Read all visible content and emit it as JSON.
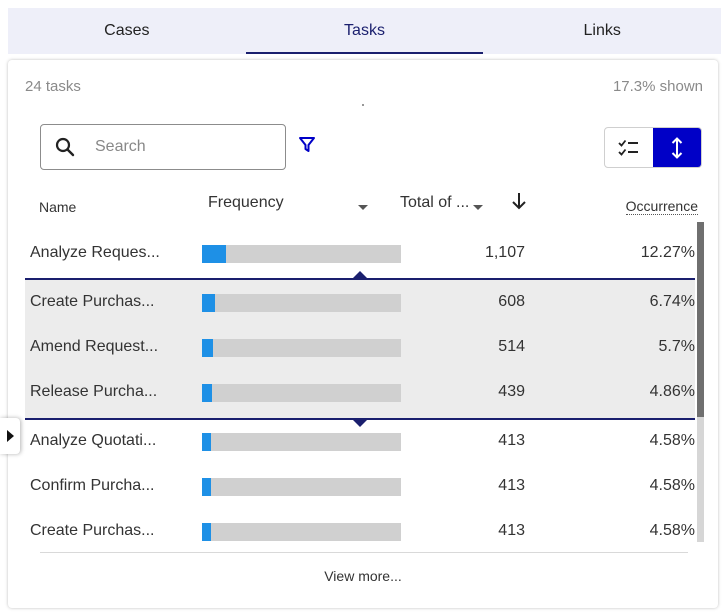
{
  "tabs": [
    {
      "label": "Cases",
      "active": false
    },
    {
      "label": "Tasks",
      "active": true
    },
    {
      "label": "Links",
      "active": false
    }
  ],
  "summary": {
    "count": "24 tasks",
    "shown": "17.3% shown"
  },
  "search": {
    "placeholder": "Search",
    "value": "",
    "icon": "search-icon"
  },
  "filter_icon": "funnel-icon",
  "view_toggle": {
    "list_icon": "checklist-icon",
    "expand_icon": "vertical-arrows-icon",
    "active": "expand"
  },
  "columns": {
    "name": "Name",
    "frequency": "Frequency",
    "total": "Total of ...",
    "occurrence": "Occurrence",
    "sort_icon": "arrow-down-icon"
  },
  "rows": [
    {
      "name": "Analyze Reques...",
      "frequency": 0.123,
      "total": "1,107",
      "occurrence": "12.27%"
    },
    {
      "name": "Create Purchas...",
      "frequency": 0.067,
      "total": "608",
      "occurrence": "6.74%"
    },
    {
      "name": "Amend Request...",
      "frequency": 0.057,
      "total": "514",
      "occurrence": "5.7%"
    },
    {
      "name": "Release Purcha...",
      "frequency": 0.049,
      "total": "439",
      "occurrence": "4.86%"
    },
    {
      "name": "Analyze Quotati...",
      "frequency": 0.046,
      "total": "413",
      "occurrence": "4.58%"
    },
    {
      "name": "Confirm Purcha...",
      "frequency": 0.046,
      "total": "413",
      "occurrence": "4.58%"
    },
    {
      "name": "Create Purchas...",
      "frequency": 0.046,
      "total": "413",
      "occurrence": "4.58%"
    }
  ],
  "view_more": "View more...",
  "colors": {
    "accent": "#1a1f6e",
    "bar_fill": "#1e90e6",
    "bar_track": "#d0d0d0",
    "toggle_on": "#0000c7"
  }
}
